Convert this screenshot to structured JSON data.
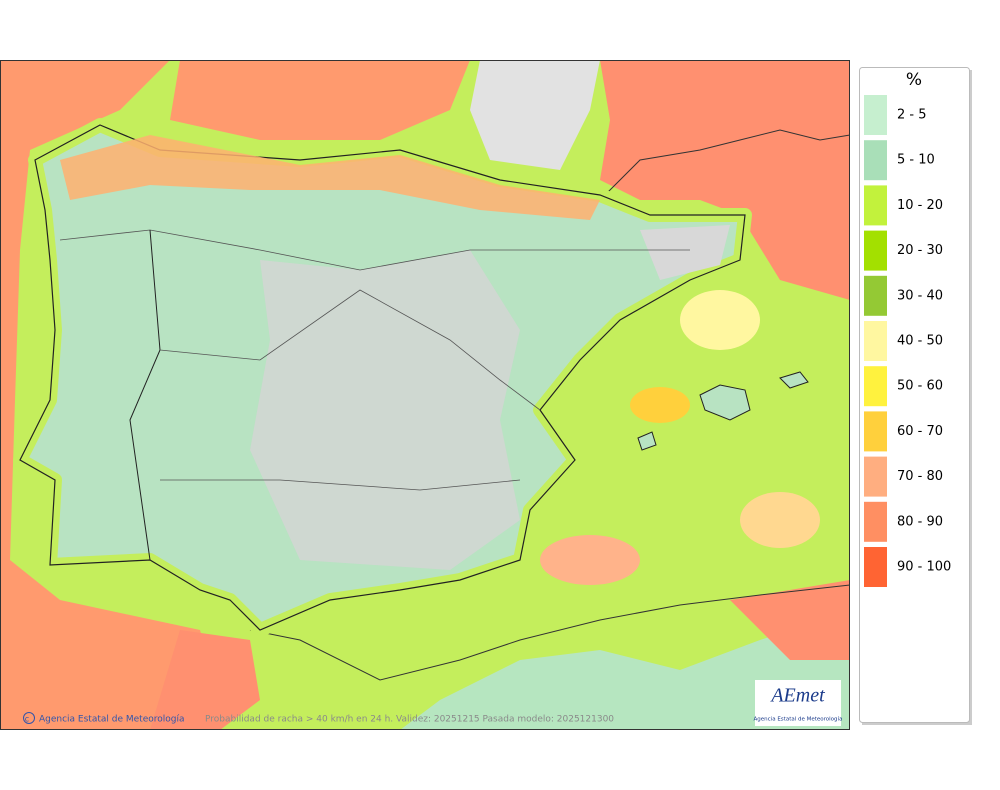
{
  "legend": {
    "title": "%",
    "items": [
      {
        "label": "2 - 5",
        "color": "#c6efcf"
      },
      {
        "label": "5 - 10",
        "color": "#a9dfb8"
      },
      {
        "label": "10 - 20",
        "color": "#c2f23c"
      },
      {
        "label": "20 - 30",
        "color": "#a3e000"
      },
      {
        "label": "30 - 40",
        "color": "#94c934"
      },
      {
        "label": "40 - 50",
        "color": "#fff7a0"
      },
      {
        "label": "50 - 60",
        "color": "#fff23e"
      },
      {
        "label": "60 - 70",
        "color": "#ffd03c"
      },
      {
        "label": "70 - 80",
        "color": "#ffae80"
      },
      {
        "label": "80 - 90",
        "color": "#ff8f62"
      },
      {
        "label": "90 - 100",
        "color": "#ff6433"
      }
    ]
  },
  "footer": {
    "credit": "Agencia Estatal de Meteorología",
    "caption": "Probabilidad de racha > 40 km/h en 24 h. Validez: 20251215 Pasada modelo: 2025121300"
  },
  "logo": {
    "name": "AEmet",
    "subtitle": "Agencia Estatal de Meteorología"
  }
}
